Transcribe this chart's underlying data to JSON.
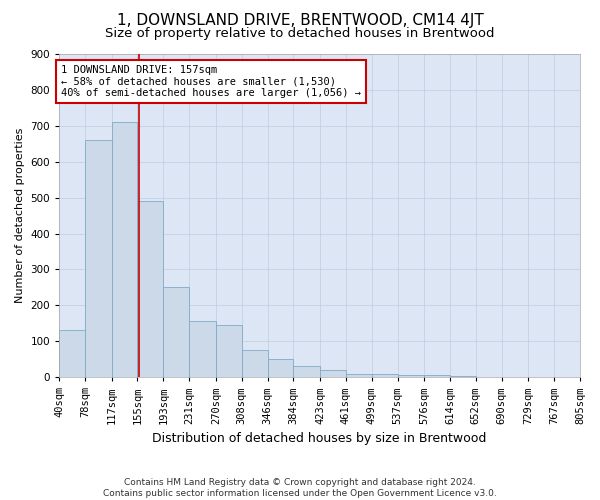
{
  "title": "1, DOWNSLAND DRIVE, BRENTWOOD, CM14 4JT",
  "subtitle": "Size of property relative to detached houses in Brentwood",
  "xlabel": "Distribution of detached houses by size in Brentwood",
  "ylabel": "Number of detached properties",
  "footer_line1": "Contains HM Land Registry data © Crown copyright and database right 2024.",
  "footer_line2": "Contains public sector information licensed under the Open Government Licence v3.0.",
  "bin_edges": [
    40,
    78,
    117,
    155,
    193,
    231,
    270,
    308,
    346,
    384,
    423,
    461,
    499,
    537,
    576,
    614,
    652,
    690,
    729,
    767,
    805
  ],
  "bar_heights": [
    130,
    660,
    710,
    490,
    250,
    155,
    145,
    75,
    50,
    30,
    20,
    10,
    10,
    5,
    5,
    2,
    1,
    1,
    1,
    1
  ],
  "bar_color": "#ccd9e8",
  "bar_edgecolor": "#7faac8",
  "property_size": 157,
  "vline_color": "#cc0000",
  "annotation_text": "1 DOWNSLAND DRIVE: 157sqm\n← 58% of detached houses are smaller (1,530)\n40% of semi-detached houses are larger (1,056) →",
  "annotation_box_color": "#ffffff",
  "annotation_box_edgecolor": "#cc0000",
  "ylim": [
    0,
    900
  ],
  "yticks": [
    0,
    100,
    200,
    300,
    400,
    500,
    600,
    700,
    800,
    900
  ],
  "grid_color": "#c0cce0",
  "background_color": "#dce6f5",
  "title_fontsize": 11,
  "subtitle_fontsize": 9.5,
  "xlabel_fontsize": 9,
  "ylabel_fontsize": 8,
  "tick_fontsize": 7.5,
  "annotation_fontsize": 7.5,
  "footer_fontsize": 6.5
}
